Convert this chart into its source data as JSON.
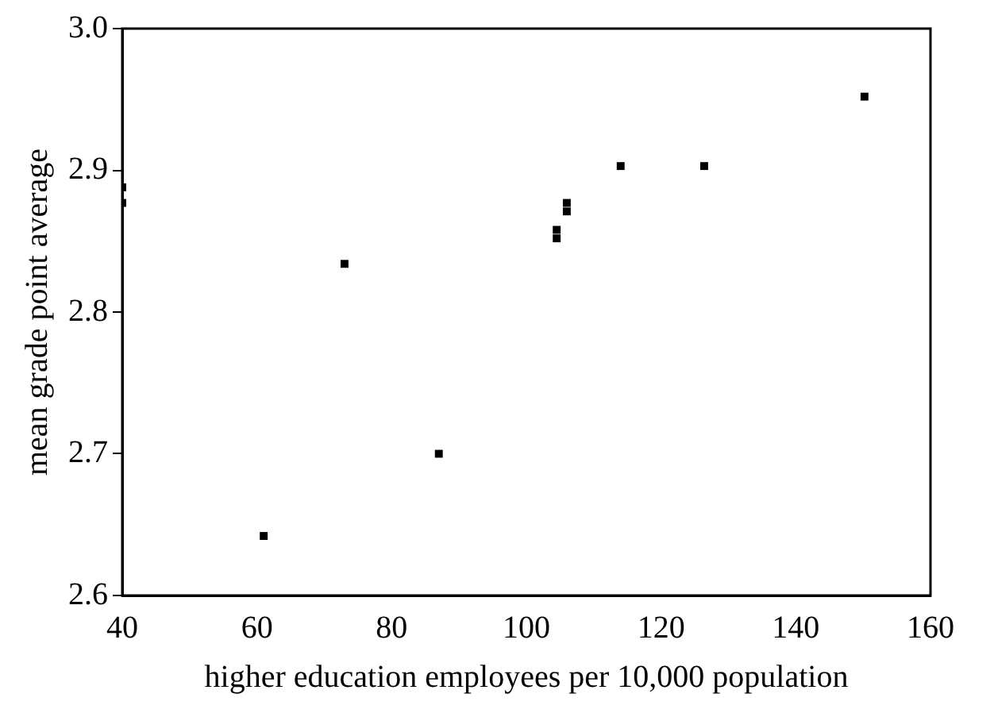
{
  "chart_data": {
    "type": "scatter",
    "xlabel": "higher education employees per 10,000 population",
    "ylabel": "mean grade point average",
    "x": [
      40,
      40,
      61,
      73,
      87,
      104.5,
      104.5,
      106,
      106,
      114,
      126.4,
      150.2
    ],
    "values": [
      2.888,
      2.877,
      2.642,
      2.834,
      2.7,
      2.858,
      2.852,
      2.877,
      2.871,
      2.903,
      2.903,
      2.952
    ],
    "color": "#000000",
    "marker": "square",
    "xlim": [
      40,
      160
    ],
    "xticks": [
      40,
      60,
      80,
      100,
      120,
      140,
      160
    ],
    "ylim": [
      2.6,
      3.0
    ],
    "yticks": [
      {
        "value": 2.6,
        "label": "2.6"
      },
      {
        "value": 2.7,
        "label": "2.7"
      },
      {
        "value": 2.8,
        "label": "2.8"
      },
      {
        "value": 2.9,
        "label": "2.9"
      },
      {
        "value": 3,
        "label": "3.0"
      }
    ],
    "grid": false,
    "legend": false
  }
}
